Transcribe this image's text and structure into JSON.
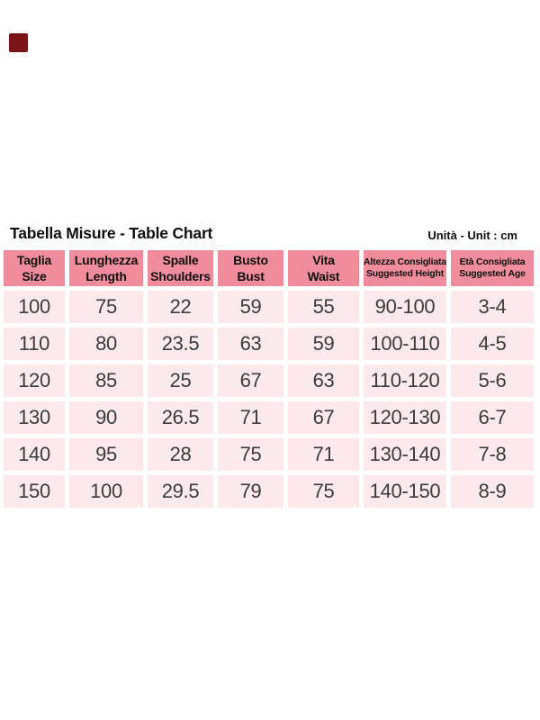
{
  "header": {
    "title": "Tabella Misure - Table Chart",
    "unit_label": "Unità - Unit : cm"
  },
  "chart_data": {
    "type": "table",
    "title": "Tabella Misure - Table Chart",
    "unit_note": "Unità - Unit : cm",
    "columns": [
      {
        "it": "Taglia",
        "en": "Size",
        "small": false
      },
      {
        "it": "Lunghezza",
        "en": "Length",
        "small": false
      },
      {
        "it": "Spalle",
        "en": "Shoulders",
        "small": false
      },
      {
        "it": "Busto",
        "en": "Bust",
        "small": false
      },
      {
        "it": "Vita",
        "en": "Waist",
        "small": false
      },
      {
        "it": "Altezza Consigliata",
        "en": "Suggested Height",
        "small": true
      },
      {
        "it": "Età Consigliata",
        "en": "Suggested Age",
        "small": true
      }
    ],
    "rows": [
      [
        "100",
        "75",
        "22",
        "59",
        "55",
        "90-100",
        "3-4"
      ],
      [
        "110",
        "80",
        "23.5",
        "63",
        "59",
        "100-110",
        "4-5"
      ],
      [
        "120",
        "85",
        "25",
        "67",
        "63",
        "110-120",
        "5-6"
      ],
      [
        "130",
        "90",
        "26.5",
        "71",
        "67",
        "120-130",
        "6-7"
      ],
      [
        "140",
        "95",
        "28",
        "75",
        "71",
        "130-140",
        "7-8"
      ],
      [
        "150",
        "100",
        "29.5",
        "79",
        "75",
        "140-150",
        "8-9"
      ]
    ]
  },
  "colors": {
    "header_cell_pink": "#f08c9b",
    "data_cell_pink": "#fbe9eb",
    "marker_red": "#7b1416",
    "data_text": "#3c3c3c"
  }
}
